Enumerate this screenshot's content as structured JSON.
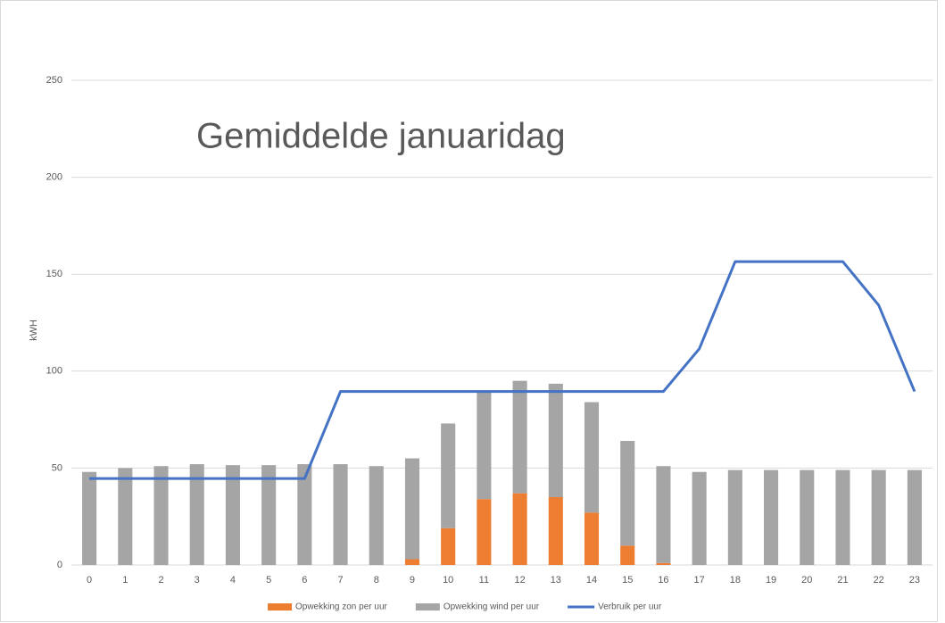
{
  "chart_data": {
    "type": "bar-line",
    "title": "Gemiddelde januaridag",
    "y_label": "kWH",
    "categories": [
      "0",
      "1",
      "2",
      "3",
      "4",
      "5",
      "6",
      "7",
      "8",
      "9",
      "10",
      "11",
      "12",
      "13",
      "14",
      "15",
      "16",
      "17",
      "18",
      "19",
      "20",
      "21",
      "22",
      "23"
    ],
    "series": [
      {
        "name": "Opwekking zon per uur",
        "color": "#ed7d31",
        "kind": "bar",
        "values": [
          0,
          0,
          0,
          0,
          0,
          0,
          0,
          0,
          0,
          3,
          19,
          34,
          37,
          35,
          27,
          10,
          1,
          0,
          0,
          0,
          0,
          0,
          0,
          0
        ]
      },
      {
        "name": "Opwekking wind per uur",
        "color": "#a5a5a5",
        "kind": "bar",
        "values": [
          48,
          50,
          51,
          52,
          51.5,
          51.5,
          52,
          52,
          51,
          52,
          54,
          56,
          58,
          58.5,
          57,
          54,
          50,
          48,
          49,
          49,
          49,
          49,
          49,
          49
        ]
      },
      {
        "name": "Verbruik per uur",
        "color": "#4472c4",
        "kind": "line",
        "values": [
          44.6,
          44.6,
          44.6,
          44.6,
          44.6,
          44.6,
          44.6,
          89.5,
          89.5,
          89.5,
          89.5,
          89.5,
          89.5,
          89.5,
          89.5,
          89.5,
          89.5,
          111.5,
          156.5,
          156.5,
          156.5,
          156.5,
          134,
          89.5
        ]
      }
    ],
    "stacked": true,
    "ylim": [
      0,
      250
    ],
    "yticks": [
      0,
      50,
      100,
      150,
      200,
      250
    ],
    "grid": true,
    "legend": "bottom"
  }
}
